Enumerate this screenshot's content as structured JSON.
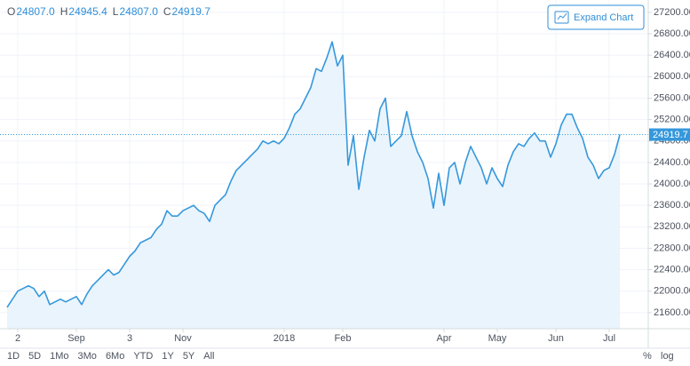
{
  "chart_data": {
    "type": "line",
    "ohlc": [
      {
        "key": "O",
        "value": "24807.0"
      },
      {
        "key": "H",
        "value": "24945.4"
      },
      {
        "key": "L",
        "value": "24807.0"
      },
      {
        "key": "C",
        "value": "24919.7"
      }
    ],
    "expand_button": "Expand Chart",
    "range_buttons": [
      "1D",
      "5D",
      "1Mo",
      "3Mo",
      "6Mo",
      "YTD",
      "1Y",
      "5Y",
      "All"
    ],
    "scale_buttons": [
      "%",
      "log"
    ],
    "last_label": "24919.7",
    "color": "#3598dc",
    "fill": "#eaf4fc",
    "grid": true,
    "categories": [
      null,
      null,
      "2",
      null,
      null,
      null,
      null,
      null,
      null,
      null,
      null,
      null,
      null,
      "Sep",
      null,
      null,
      null,
      null,
      null,
      null,
      null,
      null,
      null,
      "3",
      null,
      null,
      null,
      null,
      null,
      null,
      null,
      null,
      null,
      "Nov",
      null,
      null,
      null,
      null,
      null,
      null,
      null,
      null,
      null,
      null,
      null,
      null,
      null,
      null,
      null,
      null,
      null,
      null,
      "2018",
      null,
      null,
      null,
      null,
      null,
      null,
      null,
      null,
      null,
      null,
      "Feb",
      null,
      null,
      null,
      null,
      null,
      null,
      null,
      null,
      null,
      null,
      null,
      null,
      null,
      null,
      null,
      null,
      null,
      null,
      "Apr",
      null,
      null,
      null,
      null,
      null,
      null,
      null,
      null,
      null,
      "May",
      null,
      null,
      null,
      null,
      null,
      null,
      null,
      null,
      null,
      null,
      "Jun",
      null,
      null,
      null,
      null,
      null,
      null,
      null,
      null,
      null,
      "Jul",
      null,
      null
    ],
    "values": [
      21700,
      21850,
      22000,
      22050,
      22100,
      22050,
      21900,
      22000,
      21750,
      21800,
      21850,
      21800,
      21850,
      21900,
      21750,
      21950,
      22100,
      22200,
      22300,
      22400,
      22300,
      22350,
      22500,
      22650,
      22750,
      22900,
      22950,
      23000,
      23150,
      23250,
      23500,
      23400,
      23400,
      23500,
      23550,
      23600,
      23500,
      23450,
      23300,
      23600,
      23700,
      23800,
      24050,
      24250,
      24350,
      24450,
      24550,
      24650,
      24800,
      24750,
      24800,
      24750,
      24850,
      25050,
      25300,
      25400,
      25600,
      25800,
      26150,
      26100,
      26350,
      26650,
      26200,
      26400,
      24350,
      24900,
      23900,
      24500,
      25000,
      24800,
      25400,
      25600,
      24700,
      24800,
      24900,
      25350,
      24900,
      24600,
      24400,
      24100,
      23550,
      24200,
      23600,
      24300,
      24400,
      24000,
      24400,
      24700,
      24500,
      24300,
      24000,
      24300,
      24100,
      23950,
      24350,
      24600,
      24750,
      24700,
      24850,
      24950,
      24800,
      24800,
      24500,
      24750,
      25100,
      25300,
      25300,
      25050,
      24850,
      24500,
      24350,
      24100,
      24250,
      24300,
      24550,
      24919.7
    ],
    "ylim": [
      21300,
      27430
    ],
    "yticks": [
      {
        "value": 21600,
        "label": "21600.00"
      },
      {
        "value": 22000,
        "label": "22000.00"
      },
      {
        "value": 22400,
        "label": "22400.00"
      },
      {
        "value": 22800,
        "label": "22800.00"
      },
      {
        "value": 23200,
        "label": "23200.00"
      },
      {
        "value": 23600,
        "label": "23600.00"
      },
      {
        "value": 24000,
        "label": "24000.00"
      },
      {
        "value": 24400,
        "label": "24400.00"
      },
      {
        "value": 24800,
        "label": "24800.00"
      },
      {
        "value": 25200,
        "label": "25200.00"
      },
      {
        "value": 25600,
        "label": "25600.00"
      },
      {
        "value": 26000,
        "label": "26000.00"
      },
      {
        "value": 26400,
        "label": "26400.00"
      },
      {
        "value": 26800,
        "label": "26800.00"
      },
      {
        "value": 27200,
        "label": "27200.00"
      }
    ]
  }
}
